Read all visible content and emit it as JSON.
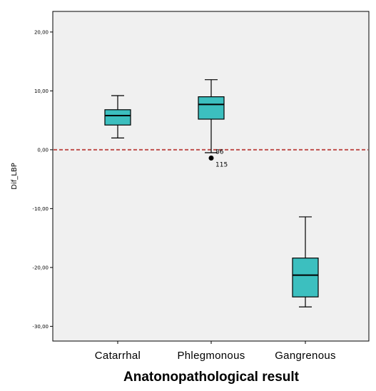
{
  "chart_data": {
    "type": "boxplot",
    "xlabel": "Anatonopathological result",
    "ylabel": "Dif_LBP",
    "ylim": [
      -32.5,
      23.5
    ],
    "yticks": [
      {
        "value": 20,
        "label": "20,00"
      },
      {
        "value": 10,
        "label": "10,00"
      },
      {
        "value": 0,
        "label": "0,00"
      },
      {
        "value": -10,
        "label": "-10,00"
      },
      {
        "value": -20,
        "label": "-20,00"
      },
      {
        "value": -30,
        "label": "-30,00"
      }
    ],
    "categories": [
      "Catarrhal",
      "Phlegmonous",
      "Gangrenous"
    ],
    "boxes": [
      {
        "category": "Catarrhal",
        "min": 2.0,
        "q1": 4.2,
        "median": 5.8,
        "q3": 6.8,
        "max": 9.2
      },
      {
        "category": "Phlegmonous",
        "min": -0.5,
        "q1": 5.2,
        "median": 7.7,
        "q3": 9.0,
        "max": 11.9
      },
      {
        "category": "Gangrenous",
        "min": -26.7,
        "q1": -25.0,
        "median": -21.3,
        "q3": -18.4,
        "max": -11.4
      }
    ],
    "outliers": [
      {
        "category": "Phlegmonous",
        "value": -0.8,
        "labels": [
          "86",
          "115"
        ]
      }
    ],
    "reference_line": {
      "value": 0,
      "color": "#c0504d",
      "style": "dashed"
    },
    "box_color": "#3cbfbf",
    "grid": false
  }
}
